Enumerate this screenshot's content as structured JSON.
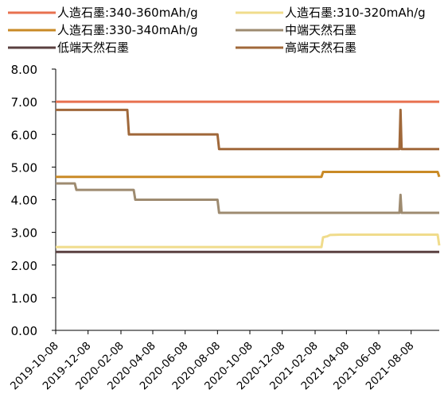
{
  "chart_data": {
    "type": "line",
    "title": "",
    "xlabel": "",
    "ylabel": "",
    "ylim": [
      0,
      8
    ],
    "yticks": [
      "0.00",
      "1.00",
      "2.00",
      "3.00",
      "4.00",
      "5.00",
      "6.00",
      "7.00",
      "8.00"
    ],
    "xlim": [
      "2019-10-08",
      "2021-09-30"
    ],
    "xticks": [
      "2019-10-08",
      "2019-12-08",
      "2020-02-08",
      "2020-04-08",
      "2020-06-08",
      "2020-08-08",
      "2020-10-08",
      "2020-12-08",
      "2021-02-08",
      "2021-04-08",
      "2021-06-08",
      "2021-08-08"
    ],
    "grid": false,
    "legend_position": "top",
    "series": [
      {
        "name": "人造石墨:340-360mAh/g",
        "color": "#E8714F",
        "points": [
          [
            "2019-10-08",
            7.0
          ],
          [
            "2021-09-30",
            7.0
          ]
        ]
      },
      {
        "name": "人造石墨:310-320mAh/g",
        "color": "#F0DC8C",
        "points": [
          [
            "2019-10-08",
            2.55
          ],
          [
            "2021-02-20",
            2.55
          ],
          [
            "2021-02-23",
            2.85
          ],
          [
            "2021-03-03",
            2.88
          ],
          [
            "2021-03-08",
            2.92
          ],
          [
            "2021-03-28",
            2.93
          ],
          [
            "2021-09-27",
            2.93
          ],
          [
            "2021-09-30",
            2.6
          ]
        ]
      },
      {
        "name": "人造石墨:330-340mAh/g",
        "color": "#C98A26",
        "points": [
          [
            "2019-10-08",
            4.7
          ],
          [
            "2021-02-20",
            4.7
          ],
          [
            "2021-02-23",
            4.85
          ],
          [
            "2021-09-27",
            4.85
          ],
          [
            "2021-09-30",
            4.7
          ]
        ]
      },
      {
        "name": "中端天然石墨",
        "color": "#9E8B70",
        "points": [
          [
            "2019-10-08",
            4.5
          ],
          [
            "2019-11-13",
            4.5
          ],
          [
            "2019-11-16",
            4.3
          ],
          [
            "2020-03-03",
            4.3
          ],
          [
            "2020-03-06",
            4.0
          ],
          [
            "2020-08-08",
            4.0
          ],
          [
            "2020-08-11",
            3.6
          ],
          [
            "2021-07-17",
            3.6
          ],
          [
            "2021-07-19",
            4.15
          ],
          [
            "2021-07-21",
            3.6
          ],
          [
            "2021-09-30",
            3.6
          ]
        ]
      },
      {
        "name": "低端天然石墨",
        "color": "#5A4040",
        "points": [
          [
            "2019-10-08",
            2.4
          ],
          [
            "2021-09-30",
            2.4
          ]
        ]
      },
      {
        "name": "高端天然石墨",
        "color": "#A0683A",
        "points": [
          [
            "2019-10-08",
            6.75
          ],
          [
            "2020-02-20",
            6.75
          ],
          [
            "2020-02-23",
            6.0
          ],
          [
            "2020-08-08",
            6.0
          ],
          [
            "2020-08-11",
            5.55
          ],
          [
            "2021-07-17",
            5.55
          ],
          [
            "2021-07-19",
            6.75
          ],
          [
            "2021-07-21",
            5.55
          ],
          [
            "2021-09-30",
            5.55
          ]
        ]
      }
    ]
  }
}
